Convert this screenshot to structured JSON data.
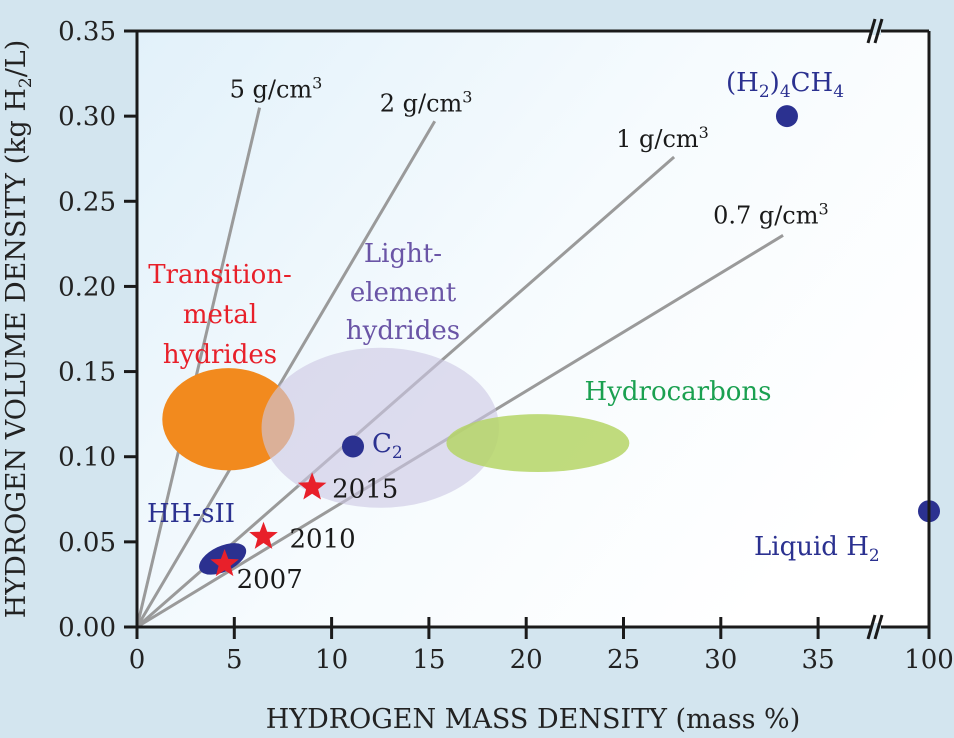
{
  "chart_data": {
    "type": "scatter",
    "title": "",
    "xlabel": "HYDROGEN MASS DENSITY (mass %)",
    "ylabel_parts": [
      "HYDROGEN VOLUME DENSITY (kg H",
      "2",
      "/L)"
    ],
    "xlim": [
      0,
      100
    ],
    "x_break": [
      37.5,
      100
    ],
    "ylim": [
      0,
      0.35
    ],
    "x_ticks": [
      {
        "value": 0,
        "label": "0"
      },
      {
        "value": 5,
        "label": "5"
      },
      {
        "value": 10,
        "label": "10"
      },
      {
        "value": 15,
        "label": "15"
      },
      {
        "value": 20,
        "label": "20"
      },
      {
        "value": 25,
        "label": "25"
      },
      {
        "value": 30,
        "label": "30"
      },
      {
        "value": 35,
        "label": "35"
      },
      {
        "value": 100,
        "label": "100"
      }
    ],
    "y_ticks": [
      {
        "value": 0.0,
        "label": "0.00"
      },
      {
        "value": 0.05,
        "label": "0.05"
      },
      {
        "value": 0.1,
        "label": "0.10"
      },
      {
        "value": 0.15,
        "label": "0.15"
      },
      {
        "value": 0.2,
        "label": "0.20"
      },
      {
        "value": 0.25,
        "label": "0.25"
      },
      {
        "value": 0.3,
        "label": "0.30"
      },
      {
        "value": 0.35,
        "label": "0.35"
      }
    ],
    "density_lines": [
      {
        "label": "5 g/cm",
        "sup": "3",
        "end": [
          6.3,
          0.305
        ]
      },
      {
        "label": "2 g/cm",
        "sup": "3",
        "end": [
          15.3,
          0.297
        ]
      },
      {
        "label": "1 g/cm",
        "sup": "3",
        "end": [
          27.6,
          0.276
        ]
      },
      {
        "label": "0.7 g/cm",
        "sup": "3",
        "end": [
          33.2,
          0.23
        ]
      }
    ],
    "regions": [
      {
        "name": "Transition-metal hydrides",
        "lines": [
          "Transition-",
          "metal",
          "hydrides"
        ],
        "cx": 4.7,
        "cy": 0.122,
        "rx": 3.4,
        "ry": 0.03,
        "color": "#f28a1e",
        "text_color": "#e8202a"
      },
      {
        "name": "Light-element hydrides",
        "lines": [
          "Light-",
          "element",
          "hydrides"
        ],
        "cx": 12.5,
        "cy": 0.117,
        "rx": 6.1,
        "ry": 0.047,
        "color": "#cdc8e4",
        "text_color": "#6a55a6"
      },
      {
        "name": "Hydrocarbons",
        "lines": [
          "Hydrocarbons"
        ],
        "cx": 20.6,
        "cy": 0.108,
        "rx": 4.7,
        "ry": 0.017,
        "color": "#b5d566",
        "text_color": "#1aa050"
      },
      {
        "name": "HH-sII",
        "lines": [
          "HH-sII"
        ],
        "cx": 4.4,
        "cy": 0.04,
        "rx": 1.3,
        "ry": 0.0075,
        "color": "#2b3190",
        "text_color": "#2b3190"
      }
    ],
    "points": [
      {
        "label": "(H2)4CH4",
        "x": 33.4,
        "y": 0.3,
        "color": "#2b3190"
      },
      {
        "label": "C2",
        "x": 11.1,
        "y": 0.106,
        "color": "#2b3190"
      },
      {
        "label": "Liquid H2",
        "x": 100,
        "y": 0.068,
        "color": "#2b3190"
      }
    ],
    "targets": [
      {
        "label": "2015",
        "x": 9.0,
        "y": 0.082,
        "color": "#e8202a"
      },
      {
        "label": "2010",
        "x": 6.5,
        "y": 0.053,
        "color": "#e8202a"
      },
      {
        "label": "2007",
        "x": 4.5,
        "y": 0.037,
        "color": "#e8202a"
      }
    ],
    "grid": false,
    "legend": "none"
  }
}
